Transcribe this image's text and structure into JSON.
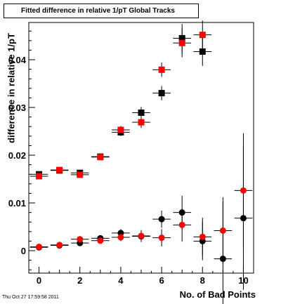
{
  "chart_data": {
    "type": "scatter",
    "title": "Fitted difference in relative 1/pT  Global Tracks",
    "xlabel": "No. of Bad Points",
    "ylabel": "difference in relative 1/pT",
    "xlim": [
      -0.5,
      10.5
    ],
    "ylim": [
      -0.0047,
      0.0478
    ],
    "x_ticks": [
      "0",
      "2",
      "4",
      "6",
      "8",
      "10"
    ],
    "y_ticks": [
      "0",
      "0.01",
      "0.02",
      "0.03",
      "0.04"
    ],
    "grid": false,
    "legend": "none",
    "series": [
      {
        "marker": "square",
        "color": "#000000",
        "x": [
          0,
          1,
          2,
          3,
          4,
          5,
          6,
          7,
          8
        ],
        "y": [
          0.016,
          0.0168,
          0.0163,
          0.0197,
          0.0248,
          0.0289,
          0.033,
          0.0445,
          0.0417
        ],
        "yerr": [
          0.0004,
          0.0003,
          0.0004,
          0.0004,
          0.0008,
          0.0012,
          0.0015,
          0.003,
          0.003
        ]
      },
      {
        "marker": "square",
        "color": "#ff0000",
        "x": [
          0,
          1,
          2,
          3,
          4,
          5,
          6,
          7,
          8
        ],
        "y": [
          0.0156,
          0.0169,
          0.0159,
          0.0196,
          0.0253,
          0.0269,
          0.0379,
          0.0435,
          0.0452
        ],
        "yerr": [
          0.0004,
          0.0003,
          0.0004,
          0.0004,
          0.0008,
          0.0012,
          0.0015,
          0.003,
          0.003
        ]
      },
      {
        "marker": "circle",
        "color": "#000000",
        "x": [
          0,
          1,
          2,
          3,
          4,
          5,
          6,
          7,
          8,
          9,
          10
        ],
        "y": [
          0.0007,
          0.0011,
          0.0016,
          0.0026,
          0.0037,
          0.003,
          0.0066,
          0.008,
          0.002,
          -0.0017,
          0.0068
        ],
        "yerr": [
          0.0003,
          0.0004,
          0.0005,
          0.0006,
          0.0008,
          0.0012,
          0.0018,
          0.0035,
          0.004,
          0.012,
          0.015
        ]
      },
      {
        "marker": "circle",
        "color": "#ff0000",
        "x": [
          0,
          1,
          2,
          3,
          4,
          5,
          6,
          7,
          8,
          9,
          10
        ],
        "y": [
          0.0008,
          0.0012,
          0.0024,
          0.0021,
          0.0028,
          0.0031,
          0.0027,
          0.0054,
          0.0029,
          0.0042,
          0.0126
        ],
        "yerr": [
          0.0003,
          0.0004,
          0.0005,
          0.0006,
          0.0008,
          0.0012,
          0.0018,
          0.0035,
          0.004,
          0.007,
          0.012
        ]
      }
    ]
  },
  "timestamp": "Thu Oct 27 17:59:58 2011"
}
